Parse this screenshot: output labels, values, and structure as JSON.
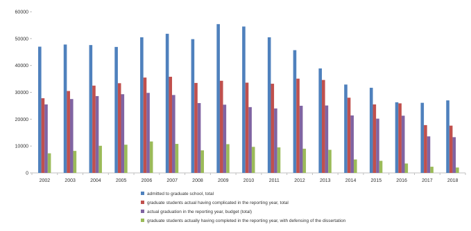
{
  "chart_data": {
    "type": "bar",
    "title": "",
    "xlabel": "",
    "ylabel": "",
    "ylim": [
      0,
      60000
    ],
    "yticks": [
      0,
      10000,
      20000,
      30000,
      40000,
      50000,
      60000
    ],
    "grid": false,
    "legend_position": "bottom",
    "categories": [
      "2002",
      "2003",
      "2004",
      "2005",
      "2006",
      "2007",
      "2008",
      "2009",
      "2010",
      "2011",
      "2012",
      "2013",
      "2014",
      "2015",
      "2016",
      "2017",
      "2018"
    ],
    "series": [
      {
        "name": "admitted to graduate school, total",
        "color": "#4f81bd",
        "values": [
          47000,
          47800,
          47600,
          46900,
          50500,
          51800,
          49800,
          55400,
          54500,
          50500,
          45700,
          38900,
          32900,
          31700,
          26300,
          26100,
          27000
        ]
      },
      {
        "name": "graduate students actual having complicated  in the reporting year, total",
        "color": "#c0504d",
        "values": [
          27800,
          30500,
          32500,
          33400,
          35500,
          35800,
          33500,
          34300,
          33600,
          33200,
          35100,
          34600,
          28000,
          25500,
          25900,
          17800,
          17600
        ]
      },
      {
        "name": "actual graduation in the reporting year, budget (total)",
        "color": "#8064a2",
        "values": [
          25500,
          27500,
          28600,
          29300,
          29800,
          29000,
          26000,
          25400,
          24500,
          24000,
          25000,
          25100,
          21400,
          20200,
          21300,
          13600,
          13300
        ]
      },
      {
        "name": "graduate students  actually having completed in the reporting year,  with defensing of the dissertation",
        "color": "#9bbb59",
        "values": [
          7300,
          8200,
          10100,
          10500,
          11700,
          10800,
          8400,
          10700,
          9700,
          9500,
          9000,
          8600,
          5000,
          4500,
          3500,
          2300,
          2000
        ]
      }
    ]
  }
}
